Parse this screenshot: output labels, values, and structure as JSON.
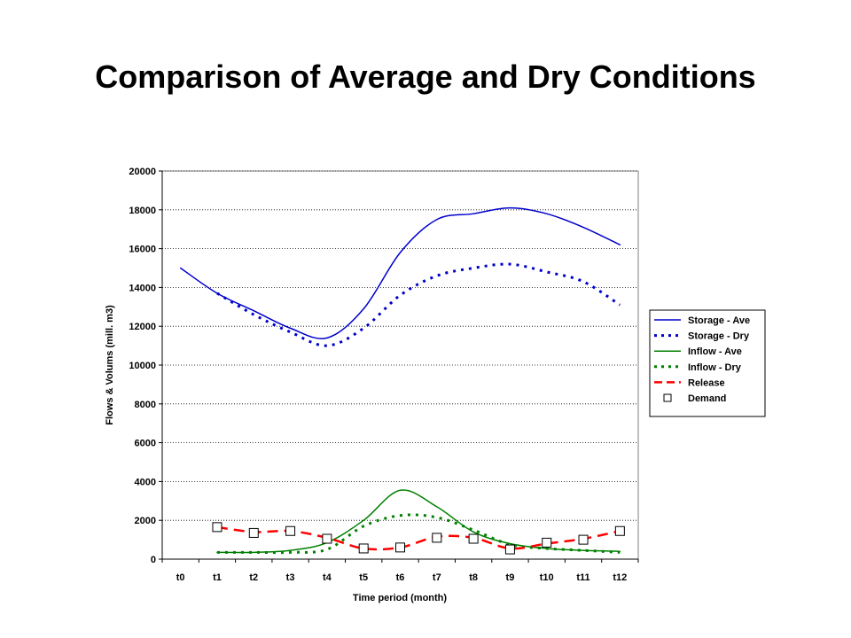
{
  "slide": {
    "title": "Comparison of Average and Dry Conditions"
  },
  "chart_data": {
    "type": "line",
    "title": "",
    "xlabel": "Time period (month)",
    "ylabel": "Flows & Volums (mill. m3)",
    "categories": [
      "t0",
      "t1",
      "t2",
      "t3",
      "t4",
      "t5",
      "t6",
      "t7",
      "t8",
      "t9",
      "t10",
      "t11",
      "t12"
    ],
    "ylim": [
      0,
      20000
    ],
    "yticks": [
      0,
      2000,
      4000,
      6000,
      8000,
      10000,
      12000,
      14000,
      16000,
      18000,
      20000
    ],
    "grid": "horizontal-dotted",
    "legend_position": "right",
    "series": [
      {
        "name": "Storage - Ave",
        "color": "#0000CC",
        "style": "solid",
        "marker": "none",
        "values": [
          15000,
          13700,
          12800,
          11900,
          11400,
          12900,
          15800,
          17500,
          17800,
          18100,
          17800,
          17100,
          16200
        ]
      },
      {
        "name": "Storage - Dry",
        "color": "#0000CC",
        "style": "dotted",
        "marker": "none",
        "values": [
          null,
          13700,
          12600,
          11700,
          11000,
          11900,
          13600,
          14600,
          15000,
          15200,
          14800,
          14300,
          13100
        ]
      },
      {
        "name": "Inflow - Ave",
        "color": "#008000",
        "style": "solid",
        "marker": "none",
        "values": [
          null,
          350,
          350,
          450,
          850,
          2000,
          3550,
          2700,
          1400,
          800,
          550,
          450,
          400
        ]
      },
      {
        "name": "Inflow - Dry",
        "color": "#008000",
        "style": "dotted",
        "marker": "none",
        "values": [
          null,
          350,
          350,
          350,
          500,
          1700,
          2250,
          2150,
          1500,
          750,
          550,
          450,
          350
        ]
      },
      {
        "name": "Release",
        "color": "#FF0000",
        "style": "dashed",
        "marker": "none",
        "values": [
          null,
          1650,
          1400,
          1450,
          1100,
          550,
          600,
          1150,
          1100,
          550,
          800,
          1050,
          1450
        ]
      },
      {
        "name": "Demand",
        "color": "#000000",
        "style": "none",
        "marker": "square",
        "values": [
          null,
          1650,
          1350,
          1450,
          1050,
          550,
          600,
          1100,
          1050,
          500,
          850,
          1000,
          1450
        ]
      }
    ]
  }
}
